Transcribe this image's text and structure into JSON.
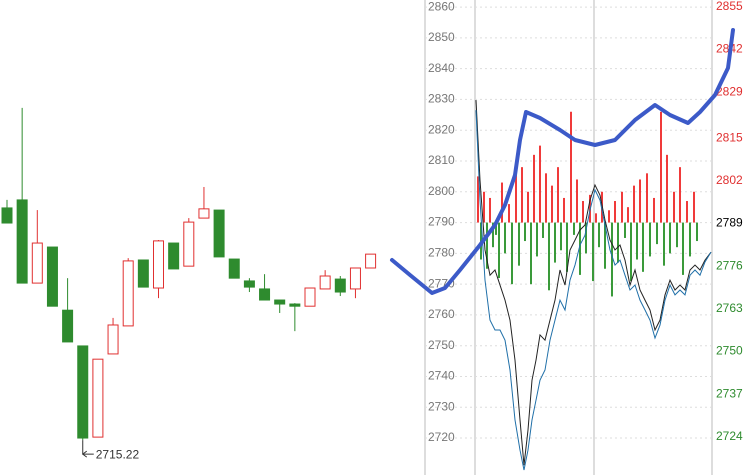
{
  "chart_data": [
    {
      "type": "candlestick",
      "annotation": "2715.22",
      "ylim": [
        2703.9,
        2858.1
      ],
      "up_color": "#e03030",
      "down_color": "#2e8b2e",
      "open": [
        2790.6,
        2793.2,
        2766.2,
        2777.9,
        2757.4,
        2745.8,
        2716.2,
        2743.2,
        2752.3,
        2773.7,
        2764.6,
        2779.2,
        2771.7,
        2787.3,
        2789.9,
        2774.0,
        2766.9,
        2764.3,
        2760.7,
        2759.4,
        2758.7,
        2764.3,
        2767.5,
        2764.3,
        2771.1
      ],
      "high": [
        2793.2,
        2823.1,
        2789.9,
        2777.9,
        2767.8,
        2745.8,
        2741.5,
        2754.9,
        2774.3,
        2773.7,
        2780.2,
        2779.2,
        2787.3,
        2797.4,
        2789.9,
        2774.0,
        2767.8,
        2769.1,
        2760.7,
        2759.7,
        2764.6,
        2770.4,
        2768.5,
        2771.1,
        2775.6
      ],
      "low": [
        2785.7,
        2766.2,
        2766.2,
        2758.7,
        2747.1,
        2715.22,
        2716.2,
        2743.2,
        2752.3,
        2764.9,
        2761.3,
        2770.8,
        2771.7,
        2787.3,
        2774.7,
        2767.8,
        2763.3,
        2760.7,
        2756.5,
        2750.6,
        2758.7,
        2764.3,
        2762.0,
        2761.3,
        2771.1
      ],
      "close": [
        2785.7,
        2766.2,
        2779.2,
        2758.7,
        2747.1,
        2715.9,
        2741.5,
        2752.6,
        2773.4,
        2764.9,
        2779.9,
        2770.8,
        2786.0,
        2790.3,
        2774.7,
        2767.8,
        2764.9,
        2760.7,
        2759.4,
        2758.7,
        2764.6,
        2768.5,
        2763.3,
        2771.1,
        2775.6
      ]
    },
    {
      "type": "line",
      "xlim": [
        -1,
        236
      ],
      "ylim": [
        2708.0,
        2862.3
      ],
      "yticks": [
        2720,
        2730,
        2740,
        2750,
        2760,
        2770,
        2780,
        2790,
        2800,
        2810,
        2820,
        2830,
        2840,
        2850,
        2860
      ],
      "y2lim": [
        2712.4,
        2857.1
      ],
      "y2ticks": [
        2724,
        2737,
        2750,
        2763,
        2776,
        2789,
        2802,
        2815,
        2829,
        2842,
        2855
      ],
      "y2_tick_colors": [
        "#2e8b2e",
        "#2e8b2e",
        "#2e8b2e",
        "#2e8b2e",
        "#2e8b2e",
        "#000000",
        "#e03030",
        "#e03030",
        "#e03030",
        "#e03030",
        "#e03030"
      ],
      "grid": true,
      "bars": {
        "base": 2790,
        "up_color": "#f03a3a",
        "down_color": "#3a9a3a",
        "x": [
          2,
          5,
          8,
          11,
          14,
          17,
          20,
          23,
          26,
          29,
          33,
          36,
          40,
          43,
          46,
          49,
          52,
          55,
          58,
          61,
          64,
          67,
          70,
          73,
          76,
          79,
          82,
          85,
          88,
          91,
          95,
          98,
          101,
          104,
          107,
          110,
          114,
          117,
          120,
          123,
          126,
          129,
          133,
          136,
          139,
          142,
          146,
          149,
          152,
          155,
          158,
          161,
          164,
          167,
          171,
          174,
          178,
          181,
          185,
          188,
          191,
          194,
          198,
          201,
          204,
          207,
          211,
          214,
          218,
          221
        ],
        "values": [
          2805,
          2778,
          2800,
          2775,
          2798,
          2782,
          2786,
          2772,
          2803,
          2780,
          2796,
          2770,
          2810,
          2776,
          2808,
          2784,
          2800,
          2770,
          2812,
          2779,
          2815,
          2785,
          2806,
          2768,
          2802,
          2777,
          2808,
          2781,
          2798,
          2774,
          2826,
          2786,
          2804,
          2773,
          2797,
          2780,
          2799,
          2771,
          2793,
          2782,
          2800,
          2775,
          2794,
          2766,
          2797,
          2777,
          2800,
          2785,
          2795,
          2771,
          2802,
          2778,
          2804,
          2774,
          2806,
          2779,
          2798,
          2783,
          2826,
          2776,
          2812,
          2780,
          2800,
          2782,
          2808,
          2773,
          2797,
          2779,
          2800,
          2784
        ]
      },
      "x": [
        0,
        4,
        9,
        14,
        19,
        24,
        29,
        34,
        39,
        44,
        48,
        52,
        56,
        60,
        64,
        69,
        74,
        79,
        84,
        89,
        94,
        99,
        104,
        109,
        114,
        119,
        124,
        129,
        134,
        139,
        144,
        149,
        154,
        159,
        164,
        169,
        174,
        179,
        184,
        189,
        194,
        199,
        204,
        209,
        214,
        219,
        224,
        229,
        235
      ],
      "series": [
        {
          "color": "#222222",
          "values": [
            2829.8,
            2803.8,
            2781.1,
            2772.9,
            2774.6,
            2769.7,
            2764.8,
            2758.3,
            2745.3,
            2725.9,
            2711.2,
            2722.6,
            2738.8,
            2745.3,
            2753.5,
            2751.8,
            2758.3,
            2764.8,
            2774.6,
            2769.7,
            2781.1,
            2784.3,
            2787.6,
            2789.2,
            2797.3,
            2802.2,
            2798.9,
            2790.8,
            2784.3,
            2781.1,
            2782.7,
            2777.8,
            2769.7,
            2774.6,
            2768.1,
            2764.8,
            2761.6,
            2755.1,
            2758.3,
            2766.5,
            2771.3,
            2768.1,
            2769.7,
            2768.1,
            2774.6,
            2776.2,
            2774.6,
            2777.8,
            2780.4
          ]
        },
        {
          "color": "#1f6fa8",
          "values": [
            2826.5,
            2797.3,
            2771.3,
            2758.3,
            2755.1,
            2755.1,
            2751.8,
            2742.1,
            2725.9,
            2716.1,
            2709.6,
            2716.1,
            2725.9,
            2732.3,
            2738.8,
            2742.1,
            2751.8,
            2758.3,
            2764.8,
            2761.6,
            2771.3,
            2776.2,
            2782.7,
            2785.9,
            2794.1,
            2800.6,
            2797.3,
            2789.2,
            2781.1,
            2776.2,
            2777.8,
            2772.9,
            2768.1,
            2769.7,
            2764.8,
            2761.6,
            2758.3,
            2752.5,
            2756.7,
            2764.8,
            2769.7,
            2766.5,
            2768.1,
            2766.5,
            2772.9,
            2774.6,
            2772.9,
            2777.2,
            2780.4
          ]
        }
      ]
    }
  ]
}
